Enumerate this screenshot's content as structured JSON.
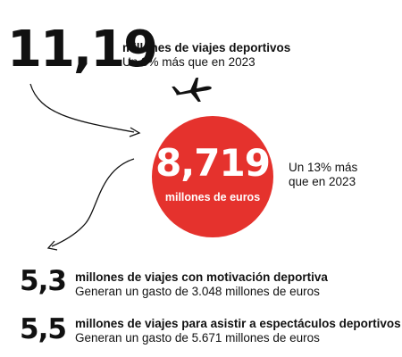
{
  "headline": {
    "number": "11,19",
    "label": "millones de viajes deportivos",
    "sublabel": "Un 3% más que en 2023"
  },
  "circle": {
    "value": "8,719",
    "label": "millones de euros",
    "color": "#e5322d",
    "note_line1": "Un 13% más",
    "note_line2": "que en 2023"
  },
  "stats": [
    {
      "number": "5,3",
      "label": "millones de viajes con motivación deportiva",
      "sublabel": "Generan un gasto de 3.048 millones de euros"
    },
    {
      "number": "5,5",
      "label": "millones de viajes para asistir a espectáculos deportivos",
      "sublabel": "Generan un gasto de 5.671 millones de euros"
    }
  ],
  "icons": {
    "airplane": "airplane-icon",
    "arrow_top": "curved-arrow-icon",
    "arrow_bottom": "curved-arrow-icon"
  }
}
